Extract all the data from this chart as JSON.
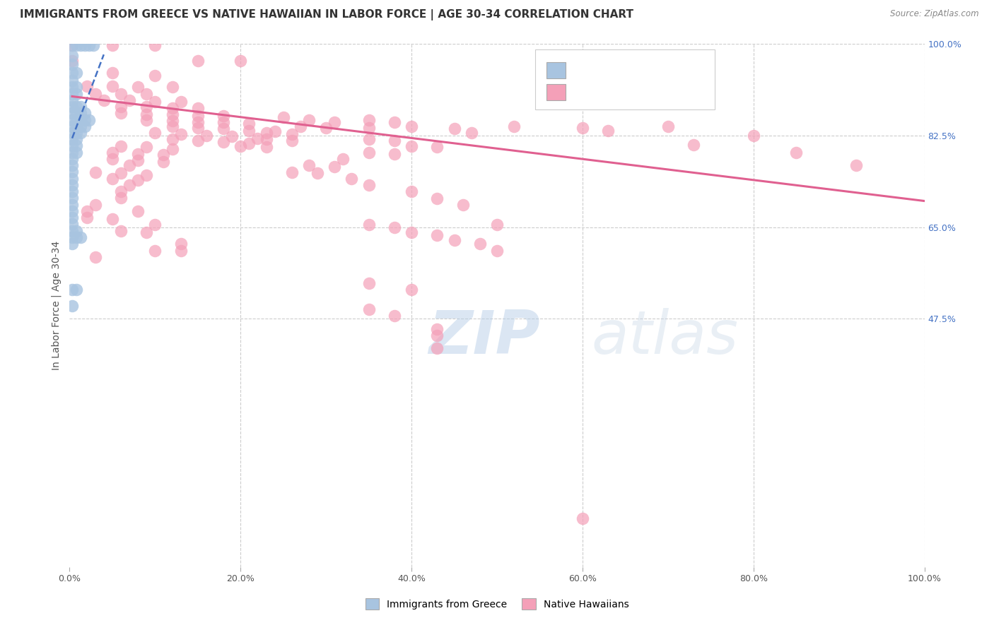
{
  "title": "IMMIGRANTS FROM GREECE VS NATIVE HAWAIIAN IN LABOR FORCE | AGE 30-34 CORRELATION CHART",
  "source": "Source: ZipAtlas.com",
  "ylabel": "In Labor Force | Age 30-34",
  "xlim": [
    0.0,
    1.0
  ],
  "ylim": [
    0.0,
    1.0
  ],
  "xtick_vals": [
    0.0,
    0.2,
    0.4,
    0.6,
    0.8,
    1.0
  ],
  "xtick_labels": [
    "0.0%",
    "20.0%",
    "40.0%",
    "60.0%",
    "80.0%",
    "100.0%"
  ],
  "ytick_vals": [
    0.475,
    0.65,
    0.825,
    1.0
  ],
  "ytick_labels": [
    "47.5%",
    "65.0%",
    "82.5%",
    "100.0%"
  ],
  "grid_color": "#cccccc",
  "background_color": "#ffffff",
  "color_greece": "#a8c4e0",
  "color_greece_line": "#4472c4",
  "color_hawaiian": "#f4a0b8",
  "color_hawaiian_line": "#e06090",
  "greece_scatter": [
    [
      0.003,
      0.998
    ],
    [
      0.008,
      0.998
    ],
    [
      0.013,
      0.998
    ],
    [
      0.018,
      0.998
    ],
    [
      0.023,
      0.998
    ],
    [
      0.028,
      0.998
    ],
    [
      0.003,
      0.978
    ],
    [
      0.003,
      0.962
    ],
    [
      0.003,
      0.945
    ],
    [
      0.008,
      0.945
    ],
    [
      0.003,
      0.93
    ],
    [
      0.003,
      0.918
    ],
    [
      0.008,
      0.918
    ],
    [
      0.003,
      0.905
    ],
    [
      0.008,
      0.905
    ],
    [
      0.003,
      0.893
    ],
    [
      0.003,
      0.88
    ],
    [
      0.008,
      0.88
    ],
    [
      0.013,
      0.88
    ],
    [
      0.003,
      0.868
    ],
    [
      0.008,
      0.868
    ],
    [
      0.013,
      0.868
    ],
    [
      0.018,
      0.868
    ],
    [
      0.003,
      0.855
    ],
    [
      0.008,
      0.855
    ],
    [
      0.013,
      0.855
    ],
    [
      0.018,
      0.855
    ],
    [
      0.023,
      0.855
    ],
    [
      0.003,
      0.843
    ],
    [
      0.008,
      0.843
    ],
    [
      0.013,
      0.843
    ],
    [
      0.018,
      0.843
    ],
    [
      0.003,
      0.83
    ],
    [
      0.008,
      0.83
    ],
    [
      0.013,
      0.83
    ],
    [
      0.003,
      0.818
    ],
    [
      0.008,
      0.818
    ],
    [
      0.003,
      0.806
    ],
    [
      0.008,
      0.806
    ],
    [
      0.003,
      0.793
    ],
    [
      0.008,
      0.793
    ],
    [
      0.003,
      0.781
    ],
    [
      0.003,
      0.768
    ],
    [
      0.003,
      0.756
    ],
    [
      0.003,
      0.743
    ],
    [
      0.003,
      0.731
    ],
    [
      0.003,
      0.718
    ],
    [
      0.003,
      0.706
    ],
    [
      0.003,
      0.693
    ],
    [
      0.003,
      0.681
    ],
    [
      0.003,
      0.668
    ],
    [
      0.003,
      0.656
    ],
    [
      0.003,
      0.643
    ],
    [
      0.003,
      0.631
    ],
    [
      0.003,
      0.618
    ],
    [
      0.008,
      0.643
    ],
    [
      0.008,
      0.631
    ],
    [
      0.013,
      0.631
    ],
    [
      0.003,
      0.53
    ],
    [
      0.008,
      0.53
    ],
    [
      0.003,
      0.5
    ]
  ],
  "hawaiian_scatter": [
    [
      0.003,
      0.998
    ],
    [
      0.05,
      0.998
    ],
    [
      0.1,
      0.998
    ],
    [
      0.003,
      0.968
    ],
    [
      0.15,
      0.968
    ],
    [
      0.2,
      0.968
    ],
    [
      0.05,
      0.945
    ],
    [
      0.1,
      0.94
    ],
    [
      0.02,
      0.92
    ],
    [
      0.05,
      0.92
    ],
    [
      0.08,
      0.918
    ],
    [
      0.12,
      0.918
    ],
    [
      0.03,
      0.905
    ],
    [
      0.06,
      0.905
    ],
    [
      0.09,
      0.905
    ],
    [
      0.04,
      0.893
    ],
    [
      0.07,
      0.893
    ],
    [
      0.1,
      0.89
    ],
    [
      0.13,
      0.89
    ],
    [
      0.06,
      0.88
    ],
    [
      0.09,
      0.88
    ],
    [
      0.12,
      0.878
    ],
    [
      0.15,
      0.878
    ],
    [
      0.06,
      0.868
    ],
    [
      0.09,
      0.865
    ],
    [
      0.12,
      0.865
    ],
    [
      0.15,
      0.863
    ],
    [
      0.18,
      0.863
    ],
    [
      0.09,
      0.855
    ],
    [
      0.12,
      0.853
    ],
    [
      0.15,
      0.85
    ],
    [
      0.18,
      0.85
    ],
    [
      0.21,
      0.848
    ],
    [
      0.12,
      0.843
    ],
    [
      0.15,
      0.84
    ],
    [
      0.18,
      0.838
    ],
    [
      0.21,
      0.835
    ],
    [
      0.24,
      0.833
    ],
    [
      0.1,
      0.83
    ],
    [
      0.13,
      0.828
    ],
    [
      0.16,
      0.825
    ],
    [
      0.19,
      0.823
    ],
    [
      0.22,
      0.82
    ],
    [
      0.12,
      0.818
    ],
    [
      0.15,
      0.815
    ],
    [
      0.18,
      0.813
    ],
    [
      0.21,
      0.81
    ],
    [
      0.06,
      0.805
    ],
    [
      0.09,
      0.803
    ],
    [
      0.12,
      0.8
    ],
    [
      0.05,
      0.793
    ],
    [
      0.08,
      0.79
    ],
    [
      0.11,
      0.788
    ],
    [
      0.05,
      0.78
    ],
    [
      0.08,
      0.778
    ],
    [
      0.11,
      0.775
    ],
    [
      0.07,
      0.768
    ],
    [
      0.03,
      0.755
    ],
    [
      0.06,
      0.753
    ],
    [
      0.09,
      0.75
    ],
    [
      0.05,
      0.743
    ],
    [
      0.08,
      0.74
    ],
    [
      0.07,
      0.73
    ],
    [
      0.06,
      0.718
    ],
    [
      0.06,
      0.706
    ],
    [
      0.03,
      0.693
    ],
    [
      0.02,
      0.68
    ],
    [
      0.08,
      0.68
    ],
    [
      0.02,
      0.668
    ],
    [
      0.05,
      0.665
    ],
    [
      0.1,
      0.655
    ],
    [
      0.06,
      0.643
    ],
    [
      0.09,
      0.64
    ],
    [
      0.13,
      0.618
    ],
    [
      0.1,
      0.605
    ],
    [
      0.13,
      0.605
    ],
    [
      0.03,
      0.593
    ],
    [
      0.25,
      0.86
    ],
    [
      0.28,
      0.855
    ],
    [
      0.31,
      0.85
    ],
    [
      0.27,
      0.843
    ],
    [
      0.3,
      0.84
    ],
    [
      0.23,
      0.83
    ],
    [
      0.26,
      0.828
    ],
    [
      0.23,
      0.818
    ],
    [
      0.26,
      0.815
    ],
    [
      0.2,
      0.805
    ],
    [
      0.23,
      0.803
    ],
    [
      0.35,
      0.855
    ],
    [
      0.38,
      0.85
    ],
    [
      0.35,
      0.84
    ],
    [
      0.4,
      0.843
    ],
    [
      0.45,
      0.838
    ],
    [
      0.47,
      0.83
    ],
    [
      0.52,
      0.843
    ],
    [
      0.6,
      0.84
    ],
    [
      0.63,
      0.835
    ],
    [
      0.7,
      0.843
    ],
    [
      0.73,
      0.808
    ],
    [
      0.8,
      0.825
    ],
    [
      0.85,
      0.793
    ],
    [
      0.92,
      0.768
    ],
    [
      0.35,
      0.818
    ],
    [
      0.38,
      0.815
    ],
    [
      0.4,
      0.805
    ],
    [
      0.43,
      0.803
    ],
    [
      0.35,
      0.793
    ],
    [
      0.38,
      0.79
    ],
    [
      0.32,
      0.78
    ],
    [
      0.28,
      0.768
    ],
    [
      0.31,
      0.765
    ],
    [
      0.26,
      0.755
    ],
    [
      0.29,
      0.753
    ],
    [
      0.33,
      0.743
    ],
    [
      0.35,
      0.73
    ],
    [
      0.4,
      0.718
    ],
    [
      0.43,
      0.705
    ],
    [
      0.46,
      0.693
    ],
    [
      0.5,
      0.655
    ],
    [
      0.35,
      0.655
    ],
    [
      0.38,
      0.65
    ],
    [
      0.4,
      0.64
    ],
    [
      0.43,
      0.635
    ],
    [
      0.45,
      0.625
    ],
    [
      0.48,
      0.618
    ],
    [
      0.5,
      0.605
    ],
    [
      0.35,
      0.543
    ],
    [
      0.4,
      0.53
    ],
    [
      0.35,
      0.493
    ],
    [
      0.38,
      0.48
    ],
    [
      0.43,
      0.455
    ],
    [
      0.43,
      0.443
    ],
    [
      0.43,
      0.418
    ],
    [
      0.6,
      0.093
    ]
  ],
  "greece_trend_x": [
    0.003,
    0.04
  ],
  "greece_trend_y": [
    0.82,
    0.98
  ],
  "hawaiian_trend_x": [
    0.003,
    1.0
  ],
  "hawaiian_trend_y": [
    0.9,
    0.7
  ]
}
